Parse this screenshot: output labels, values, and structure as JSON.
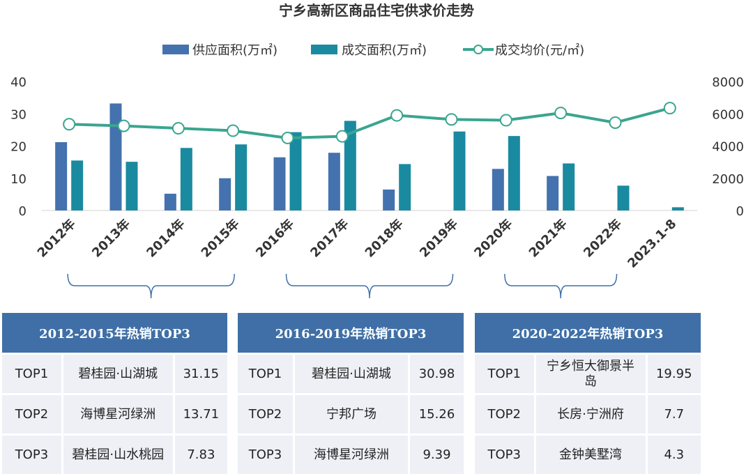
{
  "chart_data": {
    "type": "bar",
    "title": "宁乡高新区商品住宅供求价走势",
    "categories": [
      "2012年",
      "2013年",
      "2014年",
      "2015年",
      "2016年",
      "2017年",
      "2018年",
      "2019年",
      "2020年",
      "2021年",
      "2022年",
      "2023.1-8"
    ],
    "series": [
      {
        "name": "供应面积(万㎡)",
        "type": "bar",
        "axis": "left",
        "color": "#4472ae",
        "values": [
          21.2,
          33.2,
          5.2,
          10.0,
          16.5,
          17.9,
          6.5,
          0,
          12.9,
          10.7,
          0,
          0
        ]
      },
      {
        "name": "成交面积(万㎡)",
        "type": "bar",
        "axis": "left",
        "color": "#1a8aa0",
        "values": [
          15.5,
          15.1,
          19.4,
          20.5,
          24.3,
          27.8,
          14.4,
          24.5,
          23.1,
          14.6,
          7.7,
          1.0
        ]
      },
      {
        "name": "成交均价(元/㎡)",
        "type": "line",
        "axis": "right",
        "color": "#3aa58f",
        "values": [
          5350,
          5250,
          5100,
          4950,
          4500,
          4600,
          5900,
          5650,
          5600,
          6050,
          5450,
          6350
        ]
      }
    ],
    "yleft": {
      "ylim": [
        0,
        40
      ],
      "ticks": [
        0,
        10,
        20,
        30,
        40
      ]
    },
    "yright": {
      "ylim": [
        0,
        8000
      ],
      "ticks": [
        0,
        2000,
        4000,
        6000,
        8000
      ]
    },
    "legend": "top-center",
    "grid": false
  },
  "tables": [
    {
      "header": "2012-2015年热销TOP3",
      "rows": [
        {
          "rank": "TOP1",
          "name": "碧桂园·山湖城",
          "value": "31.15"
        },
        {
          "rank": "TOP2",
          "name": "海博星河绿洲",
          "value": "13.71"
        },
        {
          "rank": "TOP3",
          "name": "碧桂园·山水桃园",
          "value": "7.83"
        }
      ]
    },
    {
      "header": "2016-2019年热销TOP3",
      "rows": [
        {
          "rank": "TOP1",
          "name": "碧桂园·山湖城",
          "value": "30.98"
        },
        {
          "rank": "TOP2",
          "name": "宁邦广场",
          "value": "15.26"
        },
        {
          "rank": "TOP3",
          "name": "海博星河绿洲",
          "value": "9.39"
        }
      ]
    },
    {
      "header": "2020-2022年热销TOP3",
      "rows": [
        {
          "rank": "TOP1",
          "name": "宁乡恒大御景半岛",
          "value": "19.95"
        },
        {
          "rank": "TOP2",
          "name": "长房·宁洲府",
          "value": "7.7"
        },
        {
          "rank": "TOP3",
          "name": "金钟美墅湾",
          "value": "4.3"
        }
      ]
    }
  ]
}
